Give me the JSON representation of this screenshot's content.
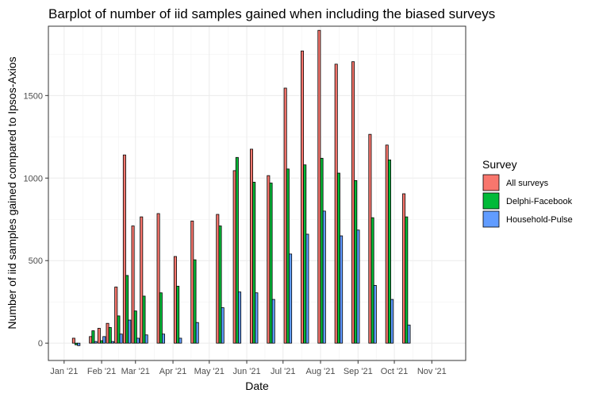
{
  "chart_data": {
    "type": "bar",
    "title": "Barplot of number of iid samples gained when including the biased surveys",
    "xlabel": "Date",
    "ylabel": "Number of iid samples gained compared to Ipsos-Axios",
    "x_ticks": [
      {
        "label": "Jan '21",
        "date": "2021-01-01"
      },
      {
        "label": "Feb '21",
        "date": "2021-02-01"
      },
      {
        "label": "Mar '21",
        "date": "2021-03-01"
      },
      {
        "label": "Apr '21",
        "date": "2021-04-01"
      },
      {
        "label": "May '21",
        "date": "2021-05-01"
      },
      {
        "label": "Jun '21",
        "date": "2021-06-01"
      },
      {
        "label": "Jul '21",
        "date": "2021-07-01"
      },
      {
        "label": "Aug '21",
        "date": "2021-08-01"
      },
      {
        "label": "Sep '21",
        "date": "2021-09-01"
      },
      {
        "label": "Oct '21",
        "date": "2021-10-01"
      },
      {
        "label": "Nov '21",
        "date": "2021-11-01"
      }
    ],
    "xlim": [
      "2020-12-19",
      "2021-11-29"
    ],
    "ylim": [
      -105,
      1920
    ],
    "y_ticks": [
      0,
      500,
      1000,
      1500
    ],
    "grid": true,
    "legend_title": "Survey",
    "legend_position": "right",
    "dates": [
      "2021-01-11",
      "2021-01-25",
      "2021-02-01",
      "2021-02-08",
      "2021-02-15",
      "2021-02-22",
      "2021-03-01",
      "2021-03-08",
      "2021-03-22",
      "2021-04-05",
      "2021-04-19",
      "2021-05-10",
      "2021-05-24",
      "2021-06-07",
      "2021-06-21",
      "2021-07-05",
      "2021-07-19",
      "2021-08-02",
      "2021-08-16",
      "2021-08-30",
      "2021-09-13",
      "2021-09-27",
      "2021-10-11",
      "2021-10-25"
    ],
    "series": [
      {
        "name": "All surveys",
        "color": "#F8766D",
        "values": [
          30,
          40,
          90,
          120,
          340,
          1140,
          710,
          765,
          785,
          525,
          740,
          780,
          1045,
          1175,
          1015,
          1545,
          1770,
          1895,
          1690,
          1705,
          1265,
          1200,
          905,
          null
        ]
      },
      {
        "name": "Delphi-Facebook",
        "color": "#00BA38",
        "values": [
          -10,
          75,
          15,
          95,
          165,
          410,
          195,
          285,
          305,
          345,
          505,
          710,
          1125,
          975,
          970,
          1055,
          1080,
          1120,
          1030,
          985,
          760,
          1110,
          765,
          null
        ]
      },
      {
        "name": "Household-Pulse",
        "color": "#619CFF",
        "values": [
          -15,
          10,
          40,
          10,
          55,
          140,
          30,
          50,
          55,
          30,
          125,
          215,
          310,
          305,
          265,
          540,
          660,
          800,
          650,
          685,
          350,
          265,
          110,
          null
        ]
      }
    ]
  }
}
